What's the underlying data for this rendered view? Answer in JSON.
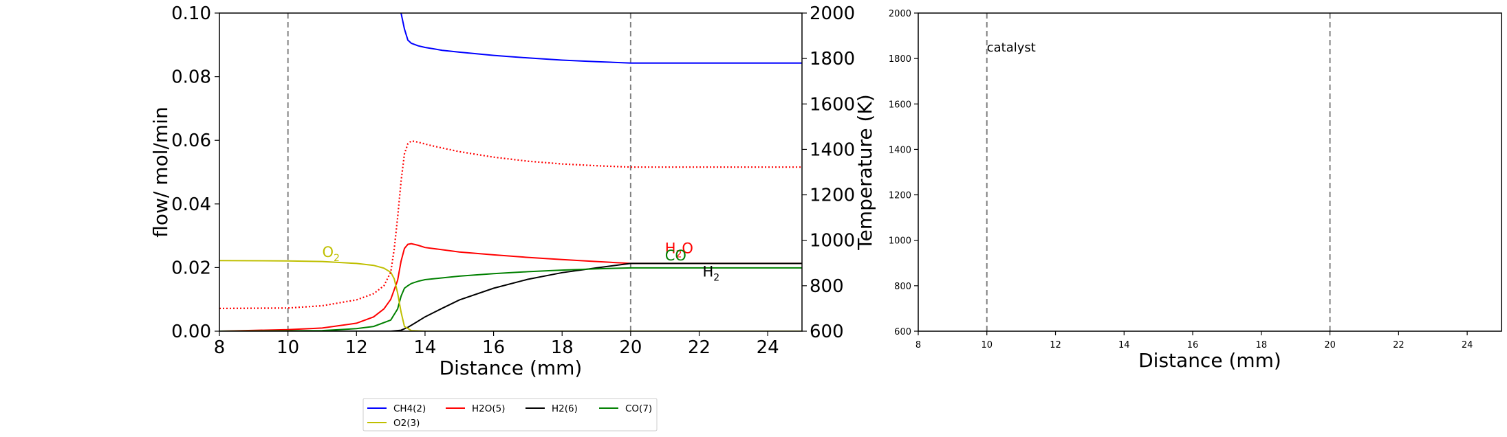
{
  "colors": {
    "CH4": "#0000ff",
    "H2O": "#ff0000",
    "H2": "#000000",
    "CO": "#008000",
    "O2": "#bfbf00",
    "vline": "#808080"
  },
  "chart_data": [
    {
      "type": "line",
      "xlabel": "Distance (mm)",
      "ylabel": "flow/ mol/min",
      "y2label": "Temperature (K)",
      "xlim": [
        8,
        25
      ],
      "ylim": [
        0,
        0.1
      ],
      "y2lim": [
        600,
        2000
      ],
      "xticks": [
        "8",
        "10",
        "12",
        "14",
        "16",
        "18",
        "20",
        "22",
        "24"
      ],
      "yticks": [
        "0.00",
        "0.02",
        "0.04",
        "0.06",
        "0.08",
        "0.10"
      ],
      "y2ticks": [
        "600",
        "800",
        "1000",
        "1200",
        "1400",
        "1600",
        "1800",
        "2000"
      ],
      "vlines": [
        10,
        20
      ],
      "legend_placement": "below",
      "legend": [
        "CH4(2)",
        "H2O(5)",
        "H2(6)",
        "CO(7)",
        "O2(3)"
      ],
      "series": [
        {
          "name": "CH4(2)",
          "color_key": "CH4",
          "style": "solid",
          "x": [
            13.3,
            13.4,
            13.5,
            13.6,
            13.8,
            14.0,
            14.5,
            15.0,
            16.0,
            17.0,
            18.0,
            19.0,
            20.0,
            21.0,
            22.0,
            23.0,
            24.0,
            25.0
          ],
          "y": [
            0.1,
            0.095,
            0.0915,
            0.0905,
            0.0897,
            0.0892,
            0.0883,
            0.0877,
            0.0867,
            0.0859,
            0.0852,
            0.0847,
            0.0843,
            0.0843,
            0.0843,
            0.0843,
            0.0843,
            0.0843
          ]
        },
        {
          "name": "H2O(5)",
          "color_key": "H2O",
          "style": "solid",
          "x": [
            8.0,
            10.0,
            11.0,
            12.0,
            12.5,
            12.8,
            13.0,
            13.2,
            13.3,
            13.4,
            13.5,
            13.6,
            13.8,
            14.0,
            15.0,
            16.0,
            17.0,
            18.0,
            19.0,
            20.0,
            21.0,
            22.0,
            23.0,
            24.0,
            25.0
          ],
          "y": [
            0.0,
            0.0005,
            0.001,
            0.0025,
            0.0045,
            0.007,
            0.01,
            0.016,
            0.022,
            0.026,
            0.0273,
            0.0275,
            0.027,
            0.0263,
            0.0249,
            0.024,
            0.0232,
            0.0225,
            0.0219,
            0.0213,
            0.0213,
            0.0213,
            0.0213,
            0.0213,
            0.0213
          ]
        },
        {
          "name": "H2(6)",
          "color_key": "H2",
          "style": "solid",
          "x": [
            8.0,
            13.0,
            13.3,
            13.5,
            13.7,
            14.0,
            14.5,
            15.0,
            16.0,
            17.0,
            18.0,
            19.0,
            20.0,
            21.0,
            22.0,
            23.0,
            24.0,
            25.0
          ],
          "y": [
            0.0,
            0.0,
            0.0003,
            0.0012,
            0.0025,
            0.0045,
            0.0072,
            0.0098,
            0.0135,
            0.0163,
            0.0184,
            0.0199,
            0.0213,
            0.0213,
            0.0213,
            0.0213,
            0.0213,
            0.0213
          ]
        },
        {
          "name": "CO(7)",
          "color_key": "CO",
          "style": "solid",
          "x": [
            8.0,
            11.0,
            12.0,
            12.5,
            13.0,
            13.2,
            13.3,
            13.4,
            13.5,
            13.6,
            13.8,
            14.0,
            15.0,
            16.0,
            17.0,
            18.0,
            19.0,
            20.0,
            21.0,
            22.0,
            23.0,
            24.0,
            25.0
          ],
          "y": [
            0.0,
            0.0002,
            0.0008,
            0.0015,
            0.0035,
            0.007,
            0.011,
            0.0135,
            0.0143,
            0.015,
            0.0157,
            0.0162,
            0.0173,
            0.0181,
            0.0187,
            0.0192,
            0.0196,
            0.0199,
            0.0199,
            0.0199,
            0.0199,
            0.0199,
            0.0199
          ]
        },
        {
          "name": "O2(3)",
          "color_key": "O2",
          "style": "solid",
          "x": [
            8.0,
            10.0,
            11.0,
            12.0,
            12.5,
            12.8,
            13.0,
            13.1,
            13.2,
            13.3,
            13.4,
            13.6,
            14.0,
            16.0,
            20.0,
            25.0
          ],
          "y": [
            0.0222,
            0.0221,
            0.0219,
            0.0213,
            0.0207,
            0.0198,
            0.0185,
            0.0165,
            0.012,
            0.006,
            0.0015,
            0.0002,
            0.0,
            0.0,
            0.0,
            0.0
          ]
        },
        {
          "name": "Temperature",
          "color_key": "H2O",
          "style": "dotted",
          "axis": "y2",
          "x": [
            8.0,
            10.0,
            11.0,
            12.0,
            12.5,
            12.8,
            13.0,
            13.1,
            13.2,
            13.3,
            13.4,
            13.5,
            13.6,
            13.7,
            13.9,
            14.2,
            14.5,
            15.0,
            16.0,
            17.0,
            18.0,
            19.0,
            20.0,
            22.0,
            25.0
          ],
          "y": [
            700,
            702,
            712,
            738,
            765,
            800,
            860,
            960,
            1100,
            1260,
            1380,
            1425,
            1437,
            1435,
            1428,
            1416,
            1406,
            1390,
            1366,
            1348,
            1336,
            1328,
            1322,
            1322,
            1322
          ]
        }
      ],
      "annotations": [
        {
          "text": "O",
          "sub": "2",
          "x": 11.0,
          "y": 0.0233,
          "color_key": "O2"
        },
        {
          "text": "H",
          "sub": "2",
          "text2": "O",
          "x": 21.0,
          "y": 0.0245,
          "color_key": "H2O"
        },
        {
          "text": "CO",
          "x": 21.0,
          "y": 0.0222,
          "color_key": "CO"
        },
        {
          "text": "H",
          "sub": "2",
          "x": 22.1,
          "y": 0.0172,
          "color_key": "H2"
        }
      ]
    },
    {
      "type": "line",
      "xlabel": "Distance (mm)",
      "ylabel": "",
      "xlim": [
        8,
        25
      ],
      "ylim": [
        600,
        2000
      ],
      "xticks": [
        "8",
        "10",
        "12",
        "14",
        "16",
        "18",
        "20",
        "22",
        "24"
      ],
      "yticks": [
        "600",
        "800",
        "1000",
        "1200",
        "1400",
        "1600",
        "1800",
        "2000"
      ],
      "vlines": [
        10,
        20
      ],
      "annotations": [
        {
          "text": "catalyst",
          "x": 10.0,
          "y": 1830
        }
      ],
      "series": []
    }
  ]
}
